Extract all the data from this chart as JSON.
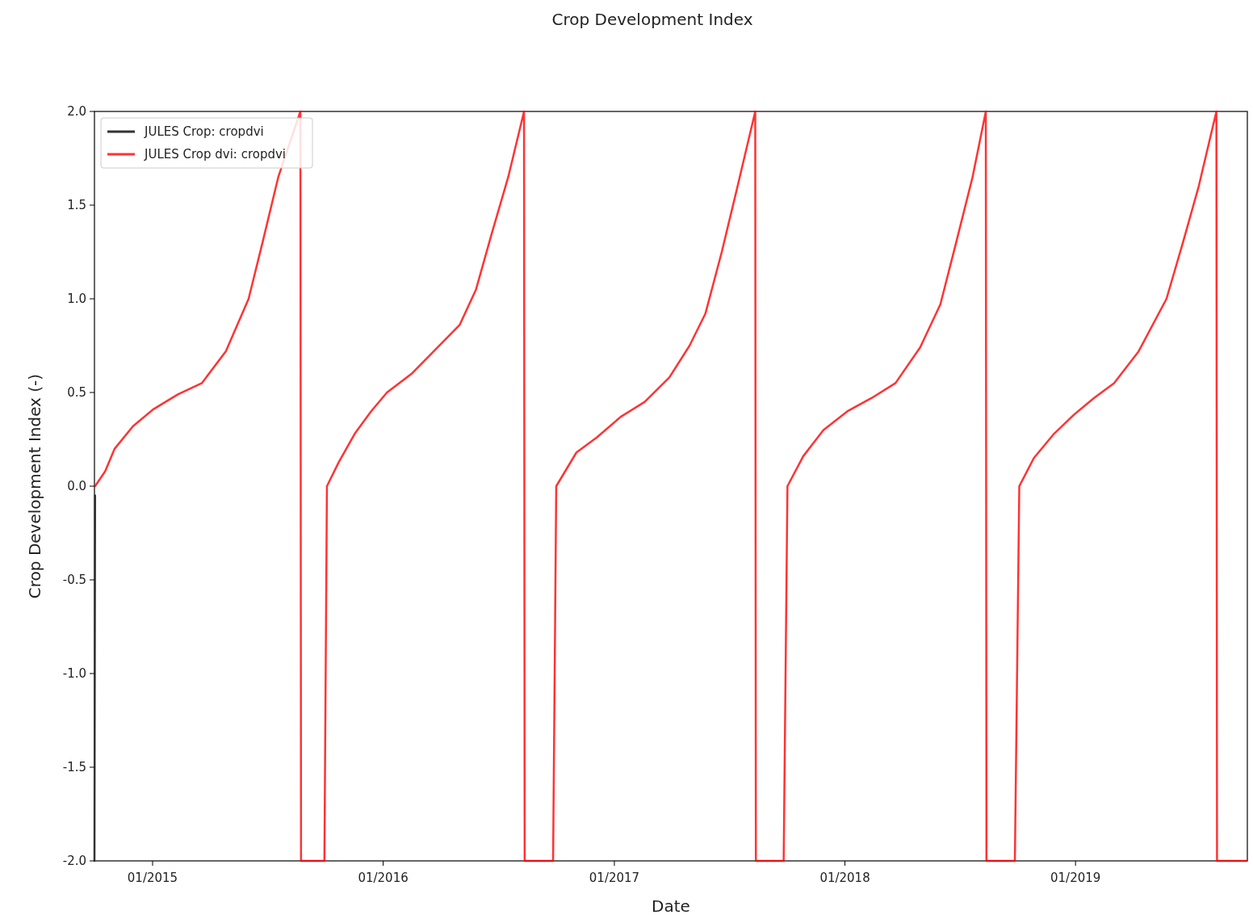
{
  "chart_data": {
    "type": "line",
    "title": "Crop Development Index",
    "xlabel": "Date",
    "ylabel": "Crop Development Index (-)",
    "x": [
      "2014-10-02",
      "2014-10-18",
      "2014-11-02",
      "2014-12-01",
      "2015-01-02",
      "2015-02-10",
      "2015-03-20",
      "2015-04-27",
      "2015-06-02",
      "2015-06-24",
      "2015-07-19",
      "2015-08-23",
      "2015-08-24",
      "2015-09-30",
      "2015-10-04",
      "2015-10-23",
      "2015-11-17",
      "2015-12-13",
      "2016-01-07",
      "2016-02-15",
      "2016-03-24",
      "2016-05-01",
      "2016-05-27",
      "2016-06-21",
      "2016-07-17",
      "2016-08-11",
      "2016-08-12",
      "2016-09-26",
      "2016-10-01",
      "2016-11-02",
      "2016-12-04",
      "2017-01-11",
      "2017-02-18",
      "2017-03-29",
      "2017-04-30",
      "2017-05-25",
      "2017-06-20",
      "2017-07-15",
      "2017-08-12",
      "2017-08-13",
      "2017-09-26",
      "2017-10-02",
      "2017-10-27",
      "2017-11-28",
      "2018-01-05",
      "2018-02-12",
      "2018-03-22",
      "2018-04-30",
      "2018-06-01",
      "2018-06-26",
      "2018-07-22",
      "2018-08-12",
      "2018-08-13",
      "2018-09-27",
      "2018-10-04",
      "2018-10-27",
      "2018-11-28",
      "2018-12-29",
      "2019-01-30",
      "2019-03-03",
      "2019-04-11",
      "2019-05-25",
      "2019-06-20",
      "2019-07-15",
      "2019-08-12",
      "2019-08-13",
      "2019-09-29"
    ],
    "series": [
      {
        "name": "JULES Crop: cropdvi",
        "color": "#333333",
        "x": [
          "2014-10-01",
          "2014-10-02"
        ],
        "values": [
          -2,
          -0.05
        ]
      },
      {
        "name": "JULES Crop dvi: cropdvi",
        "color": "#ff0000",
        "values": [
          0,
          0.08,
          0.2,
          0.32,
          0.41,
          0.49,
          0.55,
          0.72,
          1.0,
          1.3,
          1.65,
          2.0,
          -2,
          -2,
          0,
          0.13,
          0.28,
          0.4,
          0.5,
          0.6,
          0.73,
          0.86,
          1.05,
          1.35,
          1.65,
          2.0,
          -2,
          -2,
          0,
          0.18,
          0.26,
          0.37,
          0.45,
          0.58,
          0.75,
          0.92,
          1.25,
          1.6,
          2.0,
          -2,
          -2,
          0,
          0.16,
          0.3,
          0.4,
          0.47,
          0.55,
          0.74,
          0.97,
          1.3,
          1.65,
          2.0,
          -2,
          -2,
          0,
          0.15,
          0.28,
          0.38,
          0.47,
          0.55,
          0.72,
          1.0,
          1.3,
          1.6,
          2.0,
          -2,
          -2
        ]
      }
    ],
    "xlim": [
      "2014-10-01",
      "2019-09-30"
    ],
    "xticks": [
      {
        "value": "2015-01-01",
        "label": "01/2015"
      },
      {
        "value": "2016-01-01",
        "label": "01/2016"
      },
      {
        "value": "2017-01-01",
        "label": "01/2017"
      },
      {
        "value": "2018-01-01",
        "label": "01/2018"
      },
      {
        "value": "2019-01-01",
        "label": "01/2019"
      }
    ],
    "ylim": [
      -2,
      2
    ],
    "yticks": [
      {
        "value": -2,
        "label": "-2.0"
      },
      {
        "value": -1.5,
        "label": "-1.5"
      },
      {
        "value": -1,
        "label": "-1.0"
      },
      {
        "value": -0.5,
        "label": "-0.5"
      },
      {
        "value": 0,
        "label": "0.0"
      },
      {
        "value": 0.5,
        "label": "0.5"
      },
      {
        "value": 1,
        "label": "1.0"
      },
      {
        "value": 1.5,
        "label": "1.5"
      },
      {
        "value": 2,
        "label": "2.0"
      }
    ],
    "legend": "top left",
    "grid": false,
    "line_style": "solid",
    "marker": "none"
  }
}
